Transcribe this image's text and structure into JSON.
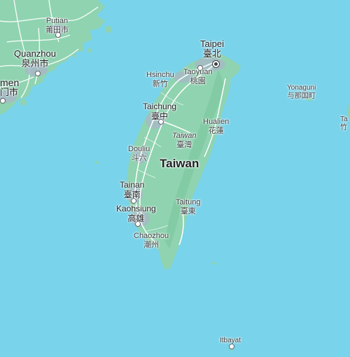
{
  "colors": {
    "water": "#79d3ea",
    "land": "#8fd3b0",
    "land_dark": "#7ec8a0",
    "urban": "#a9b7c9",
    "road": "#ffffff",
    "text": "#3c4043"
  },
  "labels": {
    "taiwan": {
      "en": "Taiwan"
    },
    "taiwan_region": {
      "en": "Taiwan",
      "zh": "臺灣"
    },
    "taipei": {
      "en": "Taipei",
      "zh": "臺北"
    },
    "taoyuan": {
      "en": "Taoyuan",
      "zh": "桃園"
    },
    "hsinchu": {
      "en": "Hsinchu",
      "zh": "新竹"
    },
    "taichung": {
      "en": "Taichung",
      "zh": "臺中"
    },
    "hualien": {
      "en": "Hualien",
      "zh": "花蓮"
    },
    "douliu": {
      "en": "Douliu",
      "zh": "斗六"
    },
    "tainan": {
      "en": "Tainan",
      "zh": "臺南"
    },
    "kaohsiung": {
      "en": "Kaohsiung",
      "zh": "高雄"
    },
    "chaozhou": {
      "en": "Chaozhou",
      "zh": "潮州"
    },
    "taitung": {
      "en": "Taitung",
      "zh": "臺東"
    },
    "putian": {
      "en": "Putian",
      "zh": "莆田市"
    },
    "quanzhou": {
      "en": "Quanzhou",
      "zh": "泉州市"
    },
    "xiamen": {
      "en": "men",
      "zh": "门市"
    },
    "yonaguni": {
      "en": "Yonaguni",
      "zh": "与那国町"
    },
    "itbayat": {
      "en": "Itbayat"
    },
    "edge_east": {
      "en": "Ta",
      "zh": "竹"
    }
  }
}
